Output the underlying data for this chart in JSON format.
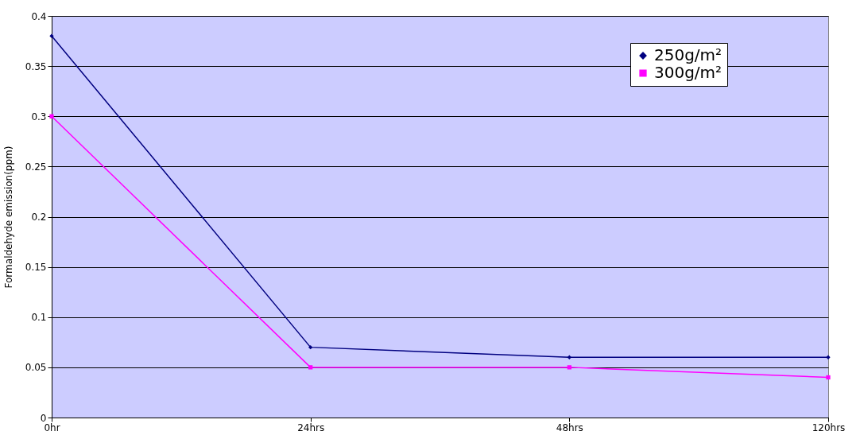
{
  "chart_data": {
    "type": "line",
    "ylabel": "Formaldehyde emission(ppm)",
    "categories": [
      "0hr",
      "24hrs",
      "48hrs",
      "120hrs"
    ],
    "series": [
      {
        "name": "250g/m²",
        "color": "#000080",
        "marker": "diamond",
        "values": [
          0.38,
          0.07,
          0.06,
          0.06
        ]
      },
      {
        "name": "300g/m²",
        "color": "#ff00ff",
        "marker": "square",
        "values": [
          0.3,
          0.05,
          0.05,
          0.04
        ]
      }
    ],
    "ylim": [
      0,
      0.4
    ],
    "yticks": [
      0,
      0.05,
      0.1,
      0.15,
      0.2,
      0.25,
      0.3,
      0.35,
      0.4
    ],
    "grid": "y",
    "legend": "top right"
  }
}
